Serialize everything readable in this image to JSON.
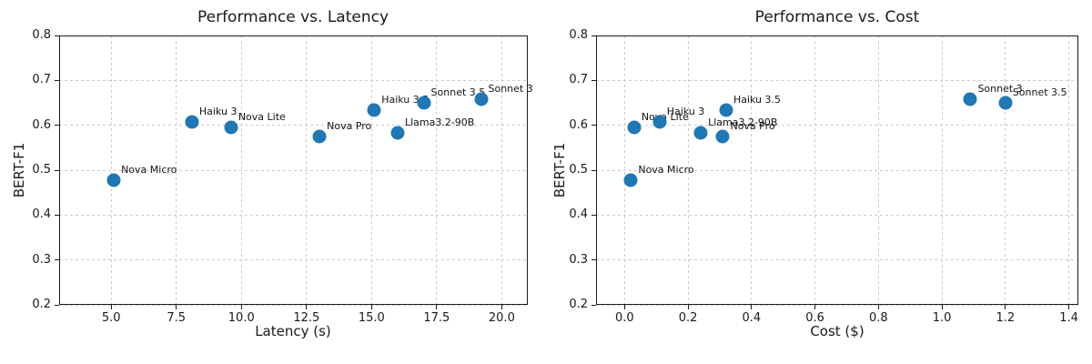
{
  "figure": {
    "background": "#ffffff",
    "marker_color": "#1f77b4",
    "grid_color": "#cbcbcb",
    "spine_color": "#1c1c1c",
    "text_color": "#1a1a1a"
  },
  "chart_data": [
    {
      "type": "scatter",
      "title": "Performance vs. Latency",
      "xlabel": "Latency (s)",
      "ylabel": "BERT-F1",
      "xlim": [
        3.0,
        21.0
      ],
      "ylim": [
        0.2,
        0.8
      ],
      "xticks": [
        5.0,
        7.5,
        10.0,
        12.5,
        15.0,
        17.5,
        20.0
      ],
      "xtick_labels": [
        "5.0",
        "7.5",
        "10.0",
        "12.5",
        "15.0",
        "17.5",
        "20.0"
      ],
      "yticks": [
        0.2,
        0.3,
        0.4,
        0.5,
        0.6,
        0.7,
        0.8
      ],
      "ytick_labels": [
        "0.2",
        "0.3",
        "0.4",
        "0.5",
        "0.6",
        "0.7",
        "0.8"
      ],
      "grid": true,
      "legend": "none",
      "points": [
        {
          "label": "Nova Micro",
          "x": 5.1,
          "y": 0.478
        },
        {
          "label": "Haiku 3",
          "x": 8.1,
          "y": 0.608
        },
        {
          "label": "Nova Lite",
          "x": 9.6,
          "y": 0.596
        },
        {
          "label": "Nova Pro",
          "x": 13.0,
          "y": 0.574
        },
        {
          "label": "Haiku 3.5",
          "x": 15.1,
          "y": 0.634
        },
        {
          "label": "Llama3.2-90B",
          "x": 16.0,
          "y": 0.583
        },
        {
          "label": "Sonnet 3.5",
          "x": 17.0,
          "y": 0.65
        },
        {
          "label": "Sonnet 3",
          "x": 19.2,
          "y": 0.658
        }
      ]
    },
    {
      "type": "scatter",
      "title": "Performance vs. Cost",
      "xlabel": "Cost ($)",
      "ylabel": "BERT-F1",
      "xlim": [
        -0.09,
        1.43
      ],
      "ylim": [
        0.2,
        0.8
      ],
      "xticks": [
        0.0,
        0.2,
        0.4,
        0.6,
        0.8,
        1.0,
        1.2,
        1.4
      ],
      "xtick_labels": [
        "0.0",
        "0.2",
        "0.4",
        "0.6",
        "0.8",
        "1.0",
        "1.2",
        "1.4"
      ],
      "yticks": [
        0.2,
        0.3,
        0.4,
        0.5,
        0.6,
        0.7,
        0.8
      ],
      "ytick_labels": [
        "0.2",
        "0.3",
        "0.4",
        "0.5",
        "0.6",
        "0.7",
        "0.8"
      ],
      "grid": true,
      "legend": "none",
      "points": [
        {
          "label": "Nova Micro",
          "x": 0.02,
          "y": 0.478
        },
        {
          "label": "Nova Lite",
          "x": 0.03,
          "y": 0.596
        },
        {
          "label": "Haiku 3",
          "x": 0.11,
          "y": 0.608
        },
        {
          "label": "Llama3.2-90B",
          "x": 0.24,
          "y": 0.583
        },
        {
          "label": "Nova Pro",
          "x": 0.31,
          "y": 0.574
        },
        {
          "label": "Haiku 3.5",
          "x": 0.32,
          "y": 0.634
        },
        {
          "label": "Sonnet 3",
          "x": 1.09,
          "y": 0.658
        },
        {
          "label": "Sonnet 3.5",
          "x": 1.2,
          "y": 0.65
        }
      ]
    }
  ]
}
